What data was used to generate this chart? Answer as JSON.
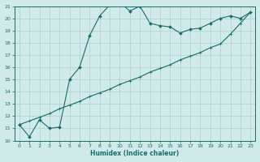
{
  "xlabel": "Humidex (Indice chaleur)",
  "bg_color": "#d0eaea",
  "line_color": "#1a6b6b",
  "grid_color": "#b0d0d0",
  "xlim": [
    -0.5,
    23.5
  ],
  "ylim": [
    10,
    21
  ],
  "xticks": [
    0,
    1,
    2,
    3,
    4,
    5,
    6,
    7,
    8,
    9,
    10,
    11,
    12,
    13,
    14,
    15,
    16,
    17,
    18,
    19,
    20,
    21,
    22,
    23
  ],
  "yticks": [
    10,
    11,
    12,
    13,
    14,
    15,
    16,
    17,
    18,
    19,
    20,
    21
  ],
  "line1_x": [
    0,
    1,
    2,
    3,
    4,
    5,
    6,
    7,
    8,
    9,
    10,
    11,
    12,
    13,
    14,
    15,
    16,
    17,
    18,
    19,
    20,
    21,
    22,
    23
  ],
  "line1_y": [
    11.3,
    10.3,
    11.7,
    11.0,
    11.1,
    15.0,
    16.0,
    18.6,
    20.2,
    21.1,
    21.3,
    20.6,
    21.0,
    19.6,
    19.4,
    19.3,
    18.8,
    19.1,
    19.2,
    19.6,
    20.0,
    20.2,
    20.0,
    20.5
  ],
  "line2_x": [
    0,
    1,
    2,
    3,
    4,
    5,
    6,
    7,
    8,
    9,
    10,
    11,
    12,
    13,
    14,
    15,
    16,
    17,
    18,
    19,
    20,
    21,
    22,
    23
  ],
  "line2_y": [
    11.3,
    11.6,
    11.9,
    12.2,
    12.6,
    12.9,
    13.2,
    13.6,
    13.9,
    14.2,
    14.6,
    14.9,
    15.2,
    15.6,
    15.9,
    16.2,
    16.6,
    16.9,
    17.2,
    17.6,
    17.9,
    18.7,
    19.6,
    20.5
  ]
}
